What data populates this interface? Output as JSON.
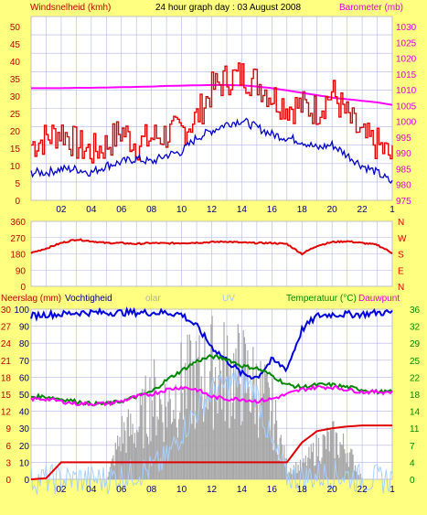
{
  "header": {
    "left_label": "Windsnelheid (kmh)",
    "title": "24 hour graph day : 03 August 2008",
    "right_label": "Barometer (mb)"
  },
  "colors": {
    "background": "#ffff80",
    "plot_bg": "#ffffff",
    "grid": "#b4b4e8",
    "frame": "#c0c0c0",
    "wind_gust": "#e00000",
    "wind_avg": "#0000c8",
    "barometer": "#ff00ff",
    "direction": "#e00000",
    "left_axis_text": "#c00000",
    "right_axis_text": "#e000e0",
    "humidity": "#0000dd",
    "temperature": "#008800",
    "dewpoint": "#ff00ff",
    "solar_fill": "#a8a8a8",
    "uv": "#a8d0ff",
    "rain": "#e00000",
    "right3_axis_text": "#008800"
  },
  "x_axis": {
    "labels": [
      "02",
      "04",
      "06",
      "08",
      "10",
      "12",
      "14",
      "16",
      "18",
      "20",
      "22",
      "1"
    ]
  },
  "panel_wind": {
    "left_ticks": [
      "50",
      "45",
      "40",
      "35",
      "30",
      "25",
      "20",
      "15",
      "10",
      "5",
      "0"
    ],
    "right_ticks": [
      "1030",
      "1025",
      "1020",
      "1015",
      "1010",
      "1005",
      "1000",
      "995",
      "990",
      "985",
      "980",
      "975"
    ]
  },
  "panel_dir": {
    "left_ticks": [
      "360",
      "270",
      "180",
      "90",
      "0"
    ],
    "right_ticks": [
      "N",
      "W",
      "S",
      "E",
      "N"
    ]
  },
  "panel_bottom": {
    "left_label": "Neerslag (mm)",
    "humidity_label": "Vochtigheid",
    "solar_label": "olar",
    "uv_label": "UV",
    "temp_label": "Temperatuur (°C)",
    "dew_label": "Dauwpunt",
    "left_ticks_mm": [
      "30",
      "27",
      "24",
      "21",
      "18",
      "15",
      "12",
      "9",
      "6",
      "3",
      "0"
    ],
    "left_ticks_pct": [
      "100",
      "90",
      "80",
      "70",
      "60",
      "50",
      "40",
      "30",
      "20",
      "10",
      "0"
    ],
    "right_ticks": [
      "36",
      "32",
      "29",
      "25",
      "22",
      "18",
      "14",
      "11",
      "7",
      "4",
      "0"
    ]
  },
  "chart_data": [
    {
      "type": "line",
      "title": "24 hour graph day : 03 August 2008",
      "ylabel": "Windsnelheid (kmh)",
      "y2label": "Barometer (mb)",
      "ylim": [
        0,
        50
      ],
      "y2lim": [
        975,
        1030
      ],
      "x_hours": [
        0,
        1,
        2,
        3,
        4,
        5,
        6,
        7,
        8,
        9,
        10,
        11,
        12,
        13,
        14,
        15,
        16,
        17,
        18,
        19,
        20,
        21,
        22,
        23,
        24
      ],
      "series": [
        {
          "name": "Windsnelheid (kmh)",
          "axis": "left",
          "values": [
            16,
            18,
            20,
            16,
            14,
            16,
            20,
            16,
            18,
            19,
            20,
            24,
            32,
            35,
            36,
            34,
            30,
            27,
            27,
            26,
            31,
            24,
            18,
            16,
            12
          ]
        },
        {
          "name": "",
          "axis": "left",
          "values": [
            8,
            8,
            9,
            9,
            8,
            10,
            11,
            12,
            11,
            13,
            14,
            18,
            20,
            22,
            23,
            21,
            19,
            18,
            17,
            15,
            16,
            13,
            10,
            8,
            5
          ]
        },
        {
          "name": "Barometer (mb)",
          "axis": "right",
          "values": [
            1010.5,
            1010.5,
            1010.5,
            1010.6,
            1010.6,
            1010.7,
            1010.8,
            1010.9,
            1011.0,
            1011.2,
            1011.3,
            1011.4,
            1011.5,
            1011.5,
            1011.4,
            1011.0,
            1010.5,
            1009.8,
            1009.0,
            1008.3,
            1007.5,
            1007.0,
            1006.5,
            1006.0,
            1005.2
          ]
        }
      ]
    },
    {
      "type": "line",
      "ylim": [
        0,
        360
      ],
      "y2labels": [
        "N",
        "W",
        "S",
        "E",
        "N"
      ],
      "x_hours": [
        0,
        1,
        2,
        3,
        4,
        5,
        6,
        7,
        8,
        9,
        10,
        11,
        12,
        13,
        14,
        15,
        16,
        17,
        18,
        19,
        20,
        21,
        22,
        23,
        24
      ],
      "series": [
        {
          "name": "",
          "values": [
            185,
            210,
            240,
            260,
            250,
            240,
            240,
            235,
            240,
            238,
            240,
            242,
            245,
            248,
            242,
            240,
            240,
            235,
            180,
            225,
            245,
            250,
            240,
            230,
            185
          ]
        }
      ]
    },
    {
      "type": "line",
      "ylabel": "Neerslag (mm)",
      "y2label": "Temperatuur (°C)",
      "ylim": [
        0,
        30
      ],
      "ylim_pct": [
        0,
        100
      ],
      "y2lim": [
        0,
        36
      ],
      "x_hours": [
        0,
        1,
        2,
        3,
        4,
        5,
        6,
        7,
        8,
        9,
        10,
        11,
        12,
        13,
        14,
        15,
        16,
        17,
        18,
        19,
        20,
        21,
        22,
        23,
        24
      ],
      "series": [
        {
          "name": "Vochtigheid",
          "axis": "pct",
          "values": [
            96,
            97,
            97,
            98,
            98,
            98,
            98,
            98,
            98,
            98,
            97,
            90,
            78,
            70,
            62,
            60,
            70,
            65,
            88,
            96,
            97,
            97,
            97,
            98,
            98
          ]
        },
        {
          "name": "Temperatuur (°C)",
          "axis": "right",
          "values": [
            17.5,
            17.5,
            17,
            16.5,
            16,
            16,
            16.5,
            17.5,
            18.5,
            21,
            23,
            25,
            26,
            25.5,
            24,
            23.5,
            22,
            20,
            19.5,
            20,
            20,
            19.5,
            19,
            18.5,
            18.5
          ]
        },
        {
          "name": "Dauwpunt",
          "axis": "right",
          "values": [
            17,
            17,
            16.5,
            16,
            16,
            16,
            16.5,
            17.5,
            18,
            19,
            19.5,
            19,
            17.5,
            17,
            17,
            16.5,
            17,
            18,
            19,
            19.5,
            19.5,
            19,
            18.5,
            18.5,
            18.5
          ]
        },
        {
          "name": "Neerslag (mm)",
          "axis": "left",
          "values": [
            0,
            0.2,
            3,
            3,
            3,
            3,
            3,
            3,
            3,
            3,
            3,
            3,
            3,
            3,
            3,
            3,
            3,
            3,
            6.5,
            8.5,
            9,
            9.3,
            9.5,
            9.5,
            9.5
          ]
        },
        {
          "name": "olar",
          "axis": "pct",
          "values": [
            0,
            0,
            0,
            0,
            0,
            0,
            35,
            38,
            62,
            55,
            70,
            74,
            82,
            80,
            78,
            68,
            50,
            8,
            10,
            24,
            30,
            22,
            0,
            0,
            0
          ]
        },
        {
          "name": "UV",
          "axis": "pct",
          "values": [
            0,
            0,
            0,
            0,
            0,
            0,
            2,
            4,
            6,
            12,
            28,
            40,
            52,
            55,
            60,
            50,
            20,
            2,
            1,
            2,
            3,
            2,
            0,
            0,
            0
          ]
        }
      ]
    }
  ]
}
